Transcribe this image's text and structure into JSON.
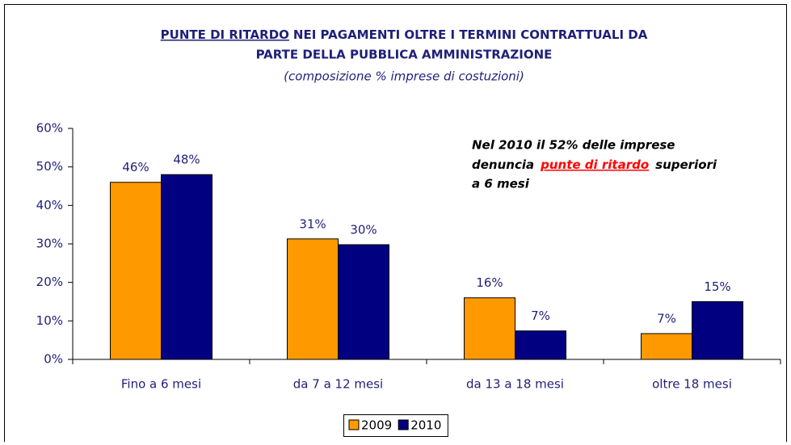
{
  "chart_data": {
    "type": "bar",
    "title": [
      "PUNTE DI RITARDO",
      "NEI PAGAMENTI OLTRE I TERMINI CONTRATTUALI DA",
      "PARTE DELLA PUBBLICA AMMINISTRAZIONE"
    ],
    "subtitle": "(composizione % imprese di costuzioni)",
    "annotation": [
      "Nel 2010 il 52% delle imprese",
      "denuncia",
      "punte di ritardo",
      "superiori",
      "a 6 mesi"
    ],
    "categories": [
      "Fino a 6 mesi",
      "da 7 a 12 mesi",
      "da 13 a 18 mesi",
      "oltre 18 mesi"
    ],
    "series": [
      {
        "name": "2009",
        "color": "#ff9900",
        "values": [
          46,
          31.3,
          16,
          6.7
        ],
        "value_labels": [
          "46%",
          "31%",
          "16%",
          "7%"
        ]
      },
      {
        "name": "2010",
        "color": "#000080",
        "values": [
          48,
          29.8,
          7.4,
          15
        ],
        "value_labels": [
          "48%",
          "30%",
          "7%",
          "15%"
        ]
      }
    ],
    "ylim": [
      0,
      60
    ],
    "yticks": [
      {
        "value": 0,
        "label": "0%"
      },
      {
        "value": 10,
        "label": "10%"
      },
      {
        "value": 20,
        "label": "20%"
      },
      {
        "value": 30,
        "label": "30%"
      },
      {
        "value": 40,
        "label": "40%"
      },
      {
        "value": 50,
        "label": "50%"
      },
      {
        "value": 60,
        "label": "60%"
      }
    ],
    "grid": false,
    "legend": "bottom"
  }
}
